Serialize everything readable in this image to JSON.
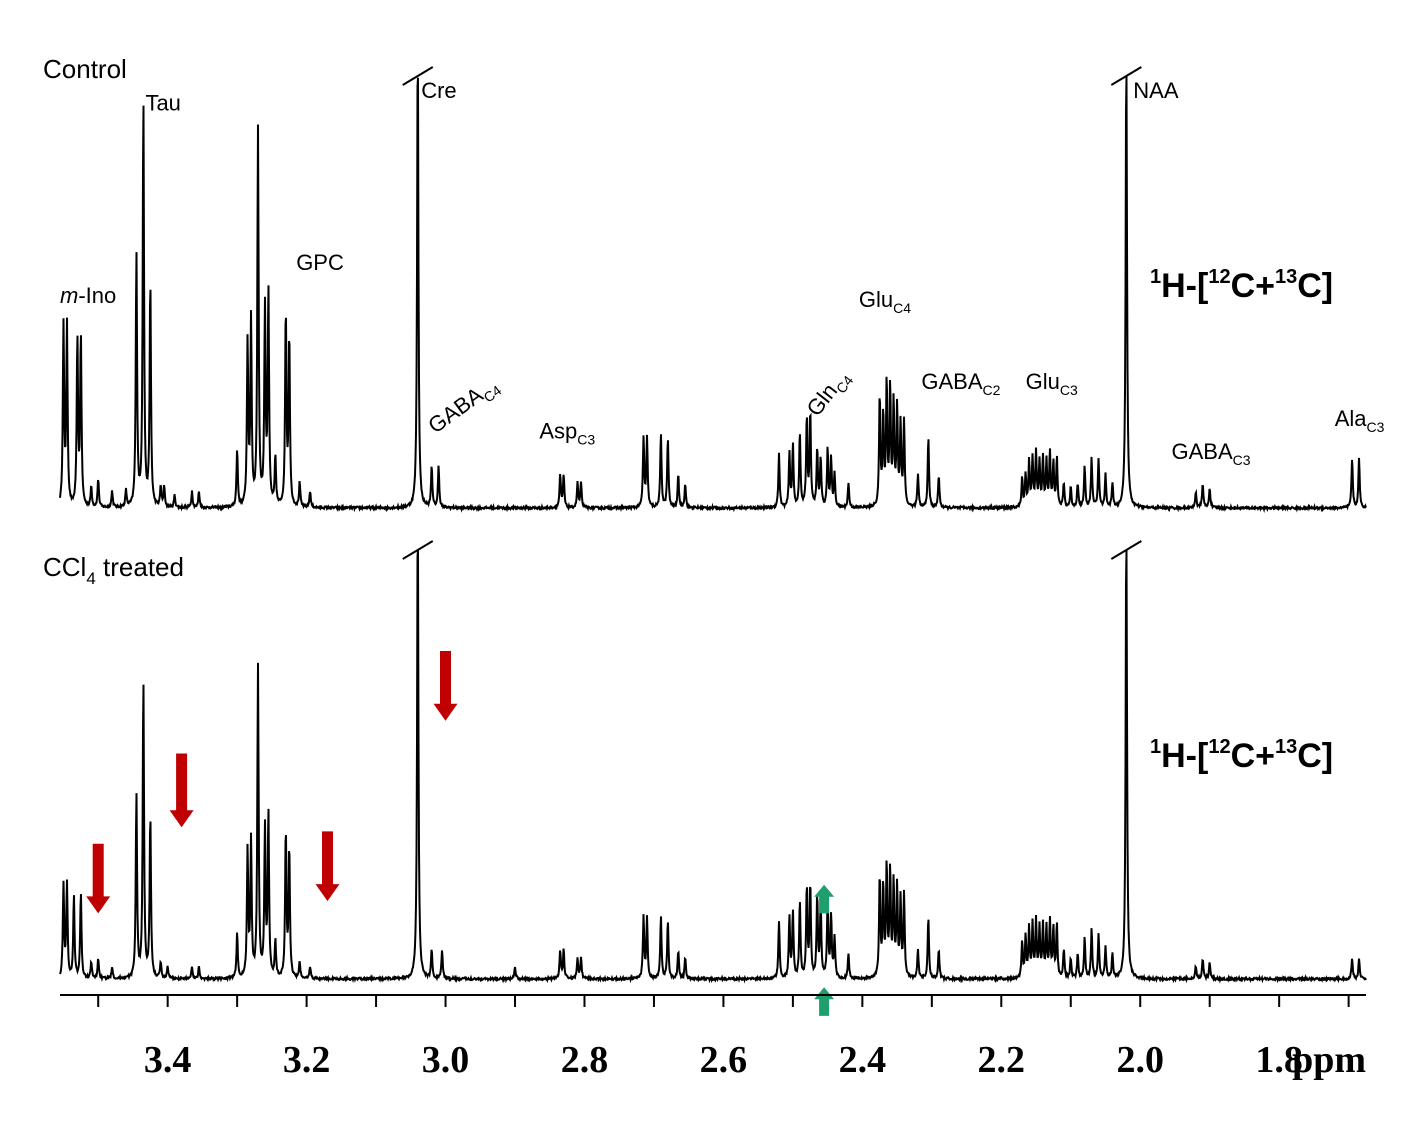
{
  "chart_data": {
    "type": "line",
    "title": "",
    "xlabel": "ppm",
    "ylabel": "",
    "xlim": [
      3.555,
      1.675
    ],
    "x_reversed": true,
    "grid": false,
    "ticks": [
      {
        "value": 3.4,
        "label": "3.4"
      },
      {
        "value": 3.2,
        "label": "3.2"
      },
      {
        "value": 3.0,
        "label": "3.0"
      },
      {
        "value": 2.8,
        "label": "2.8"
      },
      {
        "value": 2.6,
        "label": "2.6"
      },
      {
        "value": 2.4,
        "label": "2.4"
      },
      {
        "value": 2.2,
        "label": "2.2"
      },
      {
        "value": 2.0,
        "label": "2.0"
      },
      {
        "value": 1.8,
        "label": "1.8"
      }
    ],
    "minor_ticks": [
      3.5,
      3.3,
      3.1,
      2.9,
      2.7,
      2.5,
      2.3,
      2.1,
      1.9,
      1.7
    ],
    "panels": [
      {
        "title_prefix": "Control",
        "title_sub": "",
        "title_suffix": "",
        "nucleus": {
          "sup1": "1",
          "t1": "H-[",
          "sup2": "12",
          "t2": "C+",
          "sup3": "13",
          "t3": "C]"
        },
        "truncated_peaks": [
          3.04,
          2.02
        ],
        "peaks": [
          {
            "ppm": 3.55,
            "h": 0.44
          },
          {
            "ppm": 3.545,
            "h": 0.44
          },
          {
            "ppm": 3.53,
            "h": 0.41
          },
          {
            "ppm": 3.525,
            "h": 0.42
          },
          {
            "ppm": 3.51,
            "h": 0.05
          },
          {
            "ppm": 3.5,
            "h": 0.07
          },
          {
            "ppm": 3.48,
            "h": 0.04
          },
          {
            "ppm": 3.46,
            "h": 0.04
          },
          {
            "ppm": 3.445,
            "h": 0.62
          },
          {
            "ppm": 3.435,
            "h": 1.0
          },
          {
            "ppm": 3.425,
            "h": 0.55
          },
          {
            "ppm": 3.41,
            "h": 0.05
          },
          {
            "ppm": 3.405,
            "h": 0.05
          },
          {
            "ppm": 3.39,
            "h": 0.03
          },
          {
            "ppm": 3.365,
            "h": 0.04
          },
          {
            "ppm": 3.355,
            "h": 0.04
          },
          {
            "ppm": 3.3,
            "h": 0.14
          },
          {
            "ppm": 3.285,
            "h": 0.4
          },
          {
            "ppm": 3.28,
            "h": 0.45
          },
          {
            "ppm": 3.27,
            "h": 0.92
          },
          {
            "ppm": 3.26,
            "h": 0.48
          },
          {
            "ppm": 3.255,
            "h": 0.52
          },
          {
            "ppm": 3.245,
            "h": 0.12
          },
          {
            "ppm": 3.23,
            "h": 0.48
          },
          {
            "ppm": 3.225,
            "h": 0.42
          },
          {
            "ppm": 3.21,
            "h": 0.06
          },
          {
            "ppm": 3.195,
            "h": 0.04
          },
          {
            "ppm": 3.04,
            "h": 1.15
          },
          {
            "ppm": 3.02,
            "h": 0.1
          },
          {
            "ppm": 3.01,
            "h": 0.1
          },
          {
            "ppm": 2.835,
            "h": 0.08
          },
          {
            "ppm": 2.83,
            "h": 0.08
          },
          {
            "ppm": 2.81,
            "h": 0.06
          },
          {
            "ppm": 2.805,
            "h": 0.06
          },
          {
            "ppm": 2.715,
            "h": 0.17
          },
          {
            "ppm": 2.71,
            "h": 0.17
          },
          {
            "ppm": 2.69,
            "h": 0.18
          },
          {
            "ppm": 2.68,
            "h": 0.17
          },
          {
            "ppm": 2.665,
            "h": 0.08
          },
          {
            "ppm": 2.655,
            "h": 0.06
          },
          {
            "ppm": 2.52,
            "h": 0.13
          },
          {
            "ppm": 2.505,
            "h": 0.13
          },
          {
            "ppm": 2.5,
            "h": 0.15
          },
          {
            "ppm": 2.49,
            "h": 0.18
          },
          {
            "ppm": 2.48,
            "h": 0.22
          },
          {
            "ppm": 2.475,
            "h": 0.23
          },
          {
            "ppm": 2.465,
            "h": 0.14
          },
          {
            "ppm": 2.46,
            "h": 0.12
          },
          {
            "ppm": 2.45,
            "h": 0.14
          },
          {
            "ppm": 2.445,
            "h": 0.12
          },
          {
            "ppm": 2.44,
            "h": 0.08
          },
          {
            "ppm": 2.42,
            "h": 0.06
          },
          {
            "ppm": 2.375,
            "h": 0.27
          },
          {
            "ppm": 2.37,
            "h": 0.22
          },
          {
            "ppm": 2.365,
            "h": 0.3
          },
          {
            "ppm": 2.36,
            "h": 0.29
          },
          {
            "ppm": 2.355,
            "h": 0.25
          },
          {
            "ppm": 2.35,
            "h": 0.24
          },
          {
            "ppm": 2.345,
            "h": 0.2
          },
          {
            "ppm": 2.34,
            "h": 0.21
          },
          {
            "ppm": 2.32,
            "h": 0.08
          },
          {
            "ppm": 2.305,
            "h": 0.17
          },
          {
            "ppm": 2.29,
            "h": 0.08
          },
          {
            "ppm": 2.17,
            "h": 0.07
          },
          {
            "ppm": 2.165,
            "h": 0.08
          },
          {
            "ppm": 2.16,
            "h": 0.11
          },
          {
            "ppm": 2.155,
            "h": 0.12
          },
          {
            "ppm": 2.15,
            "h": 0.13
          },
          {
            "ppm": 2.145,
            "h": 0.11
          },
          {
            "ppm": 2.14,
            "h": 0.12
          },
          {
            "ppm": 2.135,
            "h": 0.11
          },
          {
            "ppm": 2.13,
            "h": 0.13
          },
          {
            "ppm": 2.125,
            "h": 0.11
          },
          {
            "ppm": 2.12,
            "h": 0.12
          },
          {
            "ppm": 2.11,
            "h": 0.06
          },
          {
            "ppm": 2.1,
            "h": 0.05
          },
          {
            "ppm": 2.09,
            "h": 0.06
          },
          {
            "ppm": 2.08,
            "h": 0.1
          },
          {
            "ppm": 2.07,
            "h": 0.12
          },
          {
            "ppm": 2.06,
            "h": 0.12
          },
          {
            "ppm": 2.05,
            "h": 0.08
          },
          {
            "ppm": 2.04,
            "h": 0.06
          },
          {
            "ppm": 2.02,
            "h": 1.15
          },
          {
            "ppm": 1.92,
            "h": 0.04
          },
          {
            "ppm": 1.91,
            "h": 0.06
          },
          {
            "ppm": 1.9,
            "h": 0.05
          },
          {
            "ppm": 1.695,
            "h": 0.12
          },
          {
            "ppm": 1.685,
            "h": 0.12
          }
        ],
        "labels": [
          {
            "id": "m-ino",
            "italic": "m",
            "text": "-Ino",
            "sub": "",
            "ppm": 3.555,
            "rot": 0,
            "h": 0.5
          },
          {
            "id": "tau",
            "italic": "",
            "text": "Tau",
            "sub": "",
            "ppm": 3.432,
            "rot": 0,
            "h": 0.97
          },
          {
            "id": "cre",
            "italic": "",
            "text": "Cre",
            "sub": "",
            "ppm": 3.035,
            "rot": 0,
            "h": 1.0
          },
          {
            "id": "gpc",
            "italic": "",
            "text": "GPC",
            "sub": "",
            "ppm": 3.215,
            "rot": 0,
            "h": 0.58
          },
          {
            "id": "gaba-c4",
            "italic": "",
            "text": "GABA",
            "sub": "C4",
            "ppm": 3.015,
            "rot": -36,
            "h": 0.18
          },
          {
            "id": "asp-c3",
            "italic": "",
            "text": "Asp",
            "sub": "C3",
            "ppm": 2.865,
            "rot": 0,
            "h": 0.17
          },
          {
            "id": "gln-c4",
            "italic": "",
            "text": "Gln",
            "sub": "C4",
            "ppm": 2.465,
            "rot": -52,
            "h": 0.22
          },
          {
            "id": "glu-c4",
            "italic": "",
            "text": "Glu",
            "sub": "C4",
            "ppm": 2.405,
            "rot": 0,
            "h": 0.49
          },
          {
            "id": "gaba-c2",
            "italic": "",
            "text": "GABA",
            "sub": "C2",
            "ppm": 2.315,
            "rot": 0,
            "h": 0.29
          },
          {
            "id": "glu-c3",
            "italic": "",
            "text": "Glu",
            "sub": "C3",
            "ppm": 2.165,
            "rot": 0,
            "h": 0.29
          },
          {
            "id": "naa",
            "italic": "",
            "text": "NAA",
            "sub": "",
            "ppm": 2.01,
            "rot": 0,
            "h": 1.0
          },
          {
            "id": "gaba-c3",
            "italic": "",
            "text": "GABA",
            "sub": "C3",
            "ppm": 1.955,
            "rot": 0,
            "h": 0.12
          },
          {
            "id": "ala-c3",
            "italic": "",
            "text": "Ala",
            "sub": "C3",
            "ppm": 1.72,
            "rot": 0,
            "h": 0.2
          }
        ],
        "arrows": []
      },
      {
        "title_prefix": "CCl",
        "title_sub": "4",
        "title_suffix": " treated",
        "nucleus": {
          "sup1": "1",
          "t1": "H-[",
          "sup2": "12",
          "t2": "C+",
          "sup3": "13",
          "t3": "C]"
        },
        "truncated_peaks": [
          3.04,
          2.02
        ],
        "peaks": [
          {
            "ppm": 3.55,
            "h": 0.23
          },
          {
            "ppm": 3.545,
            "h": 0.23
          },
          {
            "ppm": 3.535,
            "h": 0.2
          },
          {
            "ppm": 3.525,
            "h": 0.21
          },
          {
            "ppm": 3.51,
            "h": 0.04
          },
          {
            "ppm": 3.5,
            "h": 0.05
          },
          {
            "ppm": 3.48,
            "h": 0.03
          },
          {
            "ppm": 3.445,
            "h": 0.45
          },
          {
            "ppm": 3.435,
            "h": 0.73
          },
          {
            "ppm": 3.425,
            "h": 0.4
          },
          {
            "ppm": 3.41,
            "h": 0.04
          },
          {
            "ppm": 3.4,
            "h": 0.03
          },
          {
            "ppm": 3.365,
            "h": 0.03
          },
          {
            "ppm": 3.355,
            "h": 0.03
          },
          {
            "ppm": 3.3,
            "h": 0.11
          },
          {
            "ppm": 3.285,
            "h": 0.31
          },
          {
            "ppm": 3.28,
            "h": 0.33
          },
          {
            "ppm": 3.27,
            "h": 0.76
          },
          {
            "ppm": 3.26,
            "h": 0.36
          },
          {
            "ppm": 3.255,
            "h": 0.4
          },
          {
            "ppm": 3.245,
            "h": 0.09
          },
          {
            "ppm": 3.23,
            "h": 0.36
          },
          {
            "ppm": 3.225,
            "h": 0.32
          },
          {
            "ppm": 3.21,
            "h": 0.04
          },
          {
            "ppm": 3.195,
            "h": 0.03
          },
          {
            "ppm": 3.04,
            "h": 1.15
          },
          {
            "ppm": 3.02,
            "h": 0.07
          },
          {
            "ppm": 3.005,
            "h": 0.07
          },
          {
            "ppm": 2.9,
            "h": 0.03
          },
          {
            "ppm": 2.835,
            "h": 0.07
          },
          {
            "ppm": 2.83,
            "h": 0.07
          },
          {
            "ppm": 2.81,
            "h": 0.05
          },
          {
            "ppm": 2.805,
            "h": 0.05
          },
          {
            "ppm": 2.715,
            "h": 0.15
          },
          {
            "ppm": 2.71,
            "h": 0.15
          },
          {
            "ppm": 2.69,
            "h": 0.15
          },
          {
            "ppm": 2.68,
            "h": 0.14
          },
          {
            "ppm": 2.665,
            "h": 0.07
          },
          {
            "ppm": 2.655,
            "h": 0.05
          },
          {
            "ppm": 2.52,
            "h": 0.14
          },
          {
            "ppm": 2.505,
            "h": 0.15
          },
          {
            "ppm": 2.5,
            "h": 0.16
          },
          {
            "ppm": 2.49,
            "h": 0.19
          },
          {
            "ppm": 2.48,
            "h": 0.22
          },
          {
            "ppm": 2.475,
            "h": 0.23
          },
          {
            "ppm": 2.465,
            "h": 0.2
          },
          {
            "ppm": 2.46,
            "h": 0.18
          },
          {
            "ppm": 2.45,
            "h": 0.19
          },
          {
            "ppm": 2.445,
            "h": 0.15
          },
          {
            "ppm": 2.44,
            "h": 0.1
          },
          {
            "ppm": 2.42,
            "h": 0.06
          },
          {
            "ppm": 2.375,
            "h": 0.25
          },
          {
            "ppm": 2.37,
            "h": 0.22
          },
          {
            "ppm": 2.365,
            "h": 0.27
          },
          {
            "ppm": 2.36,
            "h": 0.26
          },
          {
            "ppm": 2.355,
            "h": 0.23
          },
          {
            "ppm": 2.35,
            "h": 0.22
          },
          {
            "ppm": 2.345,
            "h": 0.19
          },
          {
            "ppm": 2.34,
            "h": 0.2
          },
          {
            "ppm": 2.32,
            "h": 0.07
          },
          {
            "ppm": 2.305,
            "h": 0.15
          },
          {
            "ppm": 2.29,
            "h": 0.07
          },
          {
            "ppm": 2.17,
            "h": 0.09
          },
          {
            "ppm": 2.165,
            "h": 0.1
          },
          {
            "ppm": 2.16,
            "h": 0.12
          },
          {
            "ppm": 2.155,
            "h": 0.13
          },
          {
            "ppm": 2.15,
            "h": 0.14
          },
          {
            "ppm": 2.145,
            "h": 0.12
          },
          {
            "ppm": 2.14,
            "h": 0.13
          },
          {
            "ppm": 2.135,
            "h": 0.12
          },
          {
            "ppm": 2.13,
            "h": 0.14
          },
          {
            "ppm": 2.125,
            "h": 0.12
          },
          {
            "ppm": 2.12,
            "h": 0.13
          },
          {
            "ppm": 2.11,
            "h": 0.07
          },
          {
            "ppm": 2.1,
            "h": 0.05
          },
          {
            "ppm": 2.09,
            "h": 0.06
          },
          {
            "ppm": 2.08,
            "h": 0.1
          },
          {
            "ppm": 2.07,
            "h": 0.12
          },
          {
            "ppm": 2.06,
            "h": 0.11
          },
          {
            "ppm": 2.05,
            "h": 0.08
          },
          {
            "ppm": 2.04,
            "h": 0.06
          },
          {
            "ppm": 2.02,
            "h": 1.15
          },
          {
            "ppm": 1.92,
            "h": 0.03
          },
          {
            "ppm": 1.91,
            "h": 0.05
          },
          {
            "ppm": 1.9,
            "h": 0.04
          },
          {
            "ppm": 1.695,
            "h": 0.05
          },
          {
            "ppm": 1.685,
            "h": 0.05
          }
        ],
        "labels": [],
        "arrows": [
          {
            "id": "arrow-down-3-50",
            "ppm": 3.5,
            "dir": "down",
            "color": "#c00000",
            "from_h": 0.33,
            "to_h": 0.16
          },
          {
            "id": "arrow-down-3-38",
            "ppm": 3.38,
            "dir": "down",
            "color": "#c00000",
            "from_h": 0.55,
            "to_h": 0.37
          },
          {
            "id": "arrow-down-3-17",
            "ppm": 3.17,
            "dir": "down",
            "color": "#c00000",
            "from_h": 0.36,
            "to_h": 0.19
          },
          {
            "id": "arrow-down-3-00",
            "ppm": 3.0,
            "dir": "down",
            "color": "#c00000",
            "from_h": 0.8,
            "to_h": 0.63
          },
          {
            "id": "arrow-up-2-45-top",
            "ppm": 2.455,
            "dir": "up",
            "color": "#1f9e6e",
            "from_h": 0.16,
            "to_h": 0.23
          },
          {
            "id": "arrow-up-2-45-bottom",
            "ppm": 2.455,
            "dir": "up",
            "color": "#1f9e6e",
            "from_h": -0.09,
            "to_h": -0.02
          }
        ]
      }
    ]
  }
}
